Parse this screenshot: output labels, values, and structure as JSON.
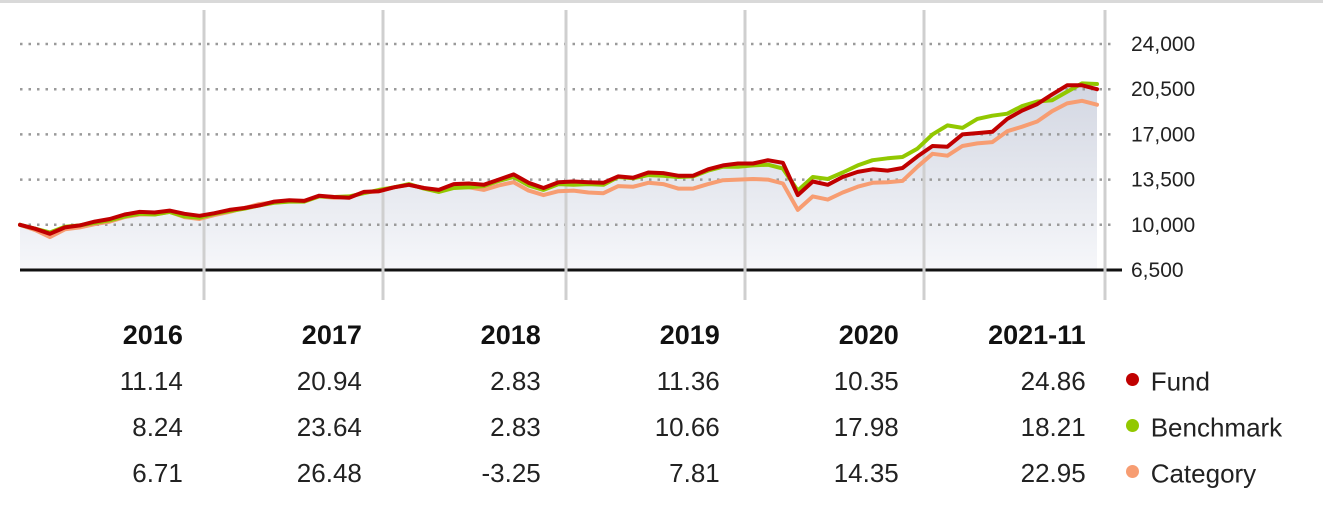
{
  "chart_data": {
    "type": "line",
    "x_start": "2015-01",
    "x_end": "2021-11",
    "year_boundaries": [
      "2016",
      "2017",
      "2018",
      "2019",
      "2020",
      "2021"
    ],
    "y_ticks": [
      "24,000",
      "20,500",
      "17,000",
      "13,500",
      "10,000",
      "6,500"
    ],
    "y_tick_values": [
      24000,
      20500,
      17000,
      13500,
      10000,
      6500
    ],
    "ylim": [
      6500,
      24000
    ],
    "grid": true,
    "series": [
      {
        "name": "Fund",
        "color": "#c00000",
        "values": [
          10000,
          9700,
          9300,
          9800,
          9950,
          10250,
          10450,
          10800,
          11000,
          10950,
          11100,
          10850,
          10700,
          10900,
          11150,
          11300,
          11500,
          11800,
          11900,
          11850,
          12250,
          12150,
          12100,
          12550,
          12600,
          12900,
          13100,
          12850,
          12700,
          13150,
          13200,
          13100,
          13500,
          13900,
          13250,
          12850,
          13300,
          13350,
          13300,
          13250,
          13750,
          13650,
          14050,
          14000,
          13800,
          13800,
          14300,
          14600,
          14750,
          14750,
          15000,
          14800,
          12300,
          13350,
          13100,
          13700,
          14100,
          14300,
          14200,
          14400,
          15300,
          16100,
          16050,
          17000,
          17100,
          17200,
          18200,
          18850,
          19350,
          20100,
          20800,
          20800,
          20500
        ]
      },
      {
        "name": "Benchmark",
        "color": "#92c800",
        "values": [
          10000,
          9700,
          9400,
          9850,
          9950,
          10150,
          10350,
          10650,
          10850,
          10800,
          11000,
          10650,
          10550,
          10850,
          11050,
          11250,
          11500,
          11700,
          11800,
          11800,
          12200,
          12150,
          12200,
          12450,
          12700,
          12900,
          13150,
          12800,
          12550,
          12850,
          12900,
          13000,
          13400,
          13700,
          13050,
          12700,
          13150,
          13100,
          13150,
          13100,
          13700,
          13600,
          13850,
          13800,
          13700,
          13750,
          14200,
          14500,
          14500,
          14600,
          14650,
          14350,
          12650,
          13700,
          13550,
          14050,
          14600,
          15000,
          15150,
          15250,
          15900,
          17000,
          17700,
          17500,
          18200,
          18450,
          18600,
          19200,
          19550,
          19650,
          20300,
          20950,
          20900
        ]
      },
      {
        "name": "Category",
        "color": "#f79d72",
        "values": [
          10000,
          9600,
          9050,
          9650,
          9800,
          10050,
          10250,
          10600,
          10800,
          10800,
          11000,
          10600,
          10450,
          10750,
          11000,
          11300,
          11600,
          11750,
          11850,
          11850,
          12200,
          12100,
          12150,
          12500,
          12600,
          12900,
          13100,
          12850,
          12550,
          12950,
          12900,
          12700,
          13050,
          13300,
          12650,
          12300,
          12600,
          12650,
          12500,
          12450,
          13000,
          12950,
          13250,
          13150,
          12800,
          12800,
          13150,
          13450,
          13500,
          13550,
          13500,
          13200,
          11150,
          12200,
          11950,
          12500,
          12950,
          13250,
          13300,
          13400,
          14500,
          15500,
          15350,
          16100,
          16300,
          16400,
          17250,
          17600,
          18000,
          18800,
          19400,
          19600,
          19300
        ]
      }
    ]
  },
  "table": {
    "headers": [
      "2016",
      "2017",
      "2018",
      "2019",
      "2020",
      "2021-11"
    ],
    "rows": [
      {
        "name": "Fund",
        "color": "#c00000",
        "values": [
          "11.14",
          "20.94",
          "2.83",
          "11.36",
          "10.35",
          "24.86"
        ]
      },
      {
        "name": "Benchmark",
        "color": "#92c800",
        "values": [
          "8.24",
          "23.64",
          "2.83",
          "10.66",
          "17.98",
          "18.21"
        ]
      },
      {
        "name": "Category",
        "color": "#f79d72",
        "values": [
          "6.71",
          "26.48",
          "-3.25",
          "7.81",
          "14.35",
          "22.95"
        ]
      }
    ]
  }
}
